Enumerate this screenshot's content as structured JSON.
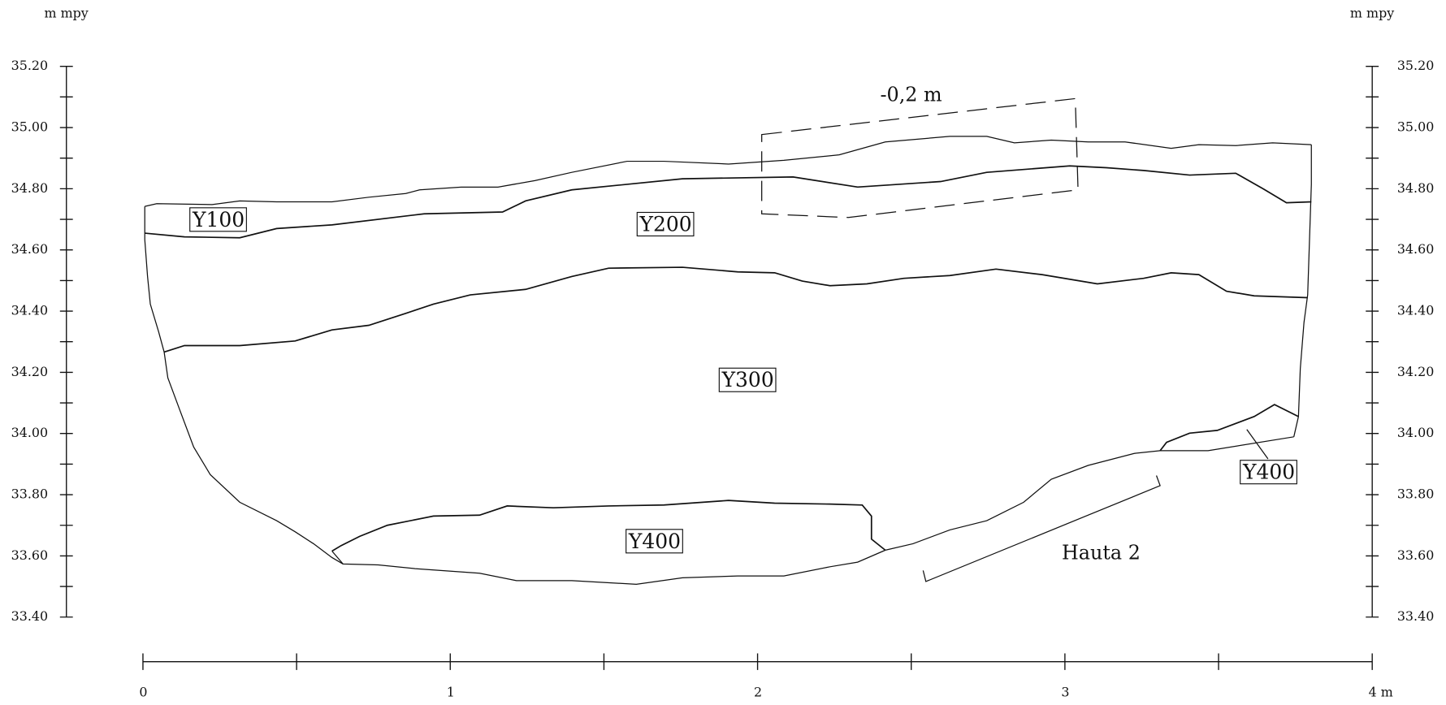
{
  "axes": {
    "left_label": "m mpy",
    "right_label": "m mpy",
    "y_ticks": [
      "35.20",
      "35.00",
      "34.80",
      "34.60",
      "34.40",
      "34.20",
      "34.00",
      "33.80",
      "33.60",
      "33.40"
    ],
    "x_ticks": [
      "0",
      "1",
      "2",
      "3",
      "4 m"
    ]
  },
  "labels": {
    "layers": [
      "Y100",
      "Y200",
      "Y300",
      "Y400",
      "Y400"
    ],
    "offset_note": "-0,2 m",
    "feature": "Hauta 2"
  }
}
